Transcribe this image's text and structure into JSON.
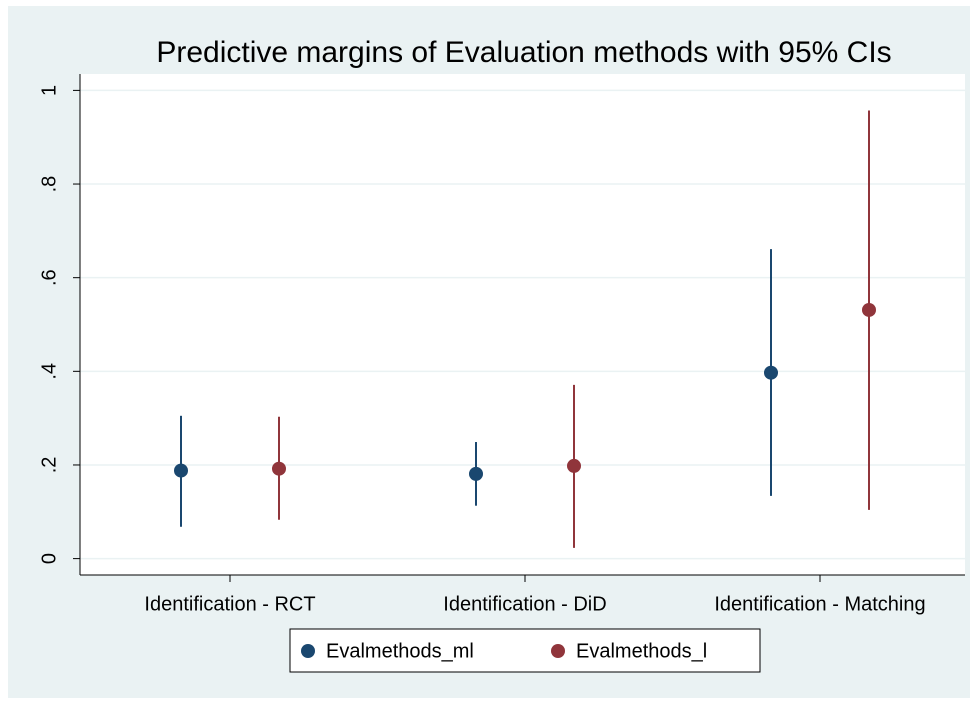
{
  "chart_data": {
    "type": "errorbar",
    "title": "Predictive margins of Evaluation methods with 95% CIs",
    "categories": [
      "Identification - RCT",
      "Identification - DiD",
      "Identification - Matching"
    ],
    "series": [
      {
        "name": "Evalmethods_ml",
        "color": "#1a476f",
        "values": [
          0.188,
          0.181,
          0.397
        ],
        "lower": [
          0.068,
          0.113,
          0.134
        ],
        "upper": [
          0.305,
          0.249,
          0.661
        ]
      },
      {
        "name": "Evalmethods_l",
        "color": "#90353b",
        "values": [
          0.192,
          0.198,
          0.531
        ],
        "lower": [
          0.083,
          0.023,
          0.104
        ],
        "upper": [
          0.303,
          0.371,
          0.957
        ]
      }
    ],
    "ylim": [
      -0.035,
      1.035
    ],
    "yticks": [
      0,
      {
        "value": 0.2,
        "label": ".2"
      },
      {
        "value": 0.4,
        "label": ".4"
      },
      {
        "value": 0.6,
        "label": ".6"
      },
      {
        "value": 0.8,
        "label": ".8"
      },
      1
    ],
    "grid": true,
    "legend": "bottom"
  }
}
